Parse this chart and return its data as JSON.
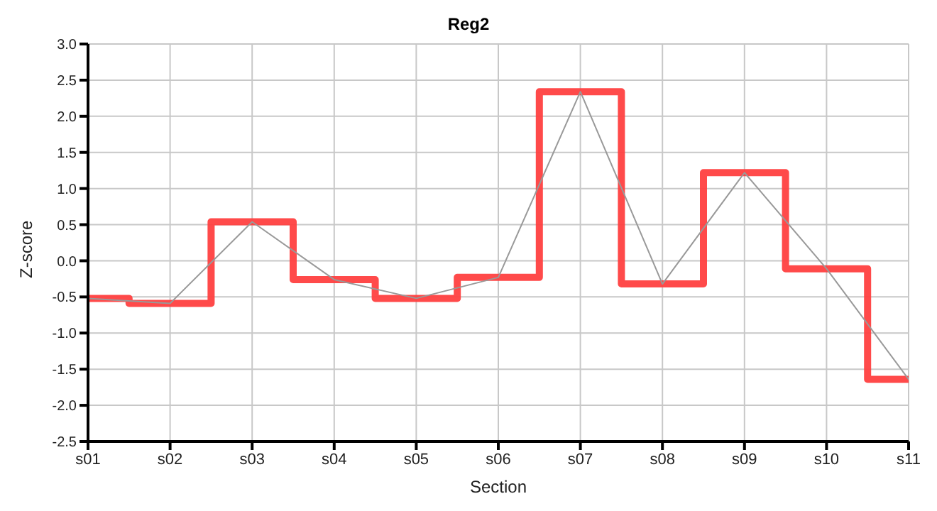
{
  "chart_data": {
    "type": "line",
    "title": "Reg2",
    "xlabel": "Section",
    "ylabel": "Z-score",
    "categories": [
      "s01",
      "s02",
      "s03",
      "s04",
      "s05",
      "s06",
      "s07",
      "s08",
      "s09",
      "s10",
      "s11"
    ],
    "series": [
      {
        "type": "step",
        "color": "#ff4040",
        "values": [
          -0.52,
          -0.59,
          0.54,
          -0.26,
          -0.52,
          -0.23,
          2.34,
          -0.32,
          1.22,
          -0.11,
          -1.64
        ]
      },
      {
        "color": "#999999",
        "values": [
          -0.52,
          -0.59,
          0.54,
          -0.26,
          -0.52,
          -0.23,
          2.34,
          -0.32,
          1.22,
          -0.11,
          -1.64
        ]
      }
    ],
    "ylim": [
      -2.5,
      3.0
    ],
    "yticks": [
      -2.5,
      {
        "value": -2,
        "label": "-2.0"
      },
      -1.5,
      {
        "value": -1,
        "label": "-1.0"
      },
      -0.5,
      {
        "value": 0,
        "label": "0.0"
      },
      0.5,
      {
        "value": 1,
        "label": "1.0"
      },
      1.5,
      {
        "value": 2,
        "label": "2.0"
      },
      2.5,
      {
        "value": 3,
        "label": "3.0"
      }
    ],
    "grid": true,
    "marker": "none"
  }
}
